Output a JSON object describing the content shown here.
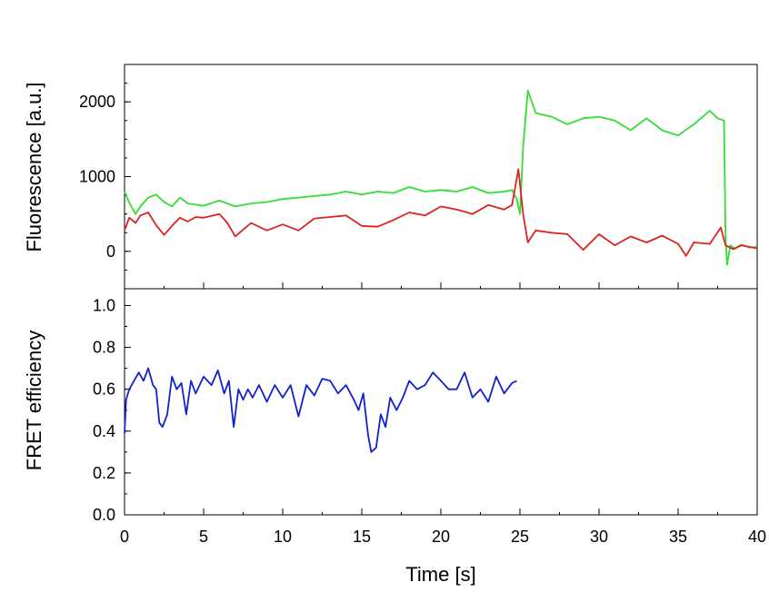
{
  "chart_data": [
    {
      "type": "line",
      "panel": "top",
      "title": "",
      "xlabel": "",
      "ylabel": "Fluorescence [a.u.]",
      "xlim": [
        0,
        40
      ],
      "ylim": [
        -500,
        2500
      ],
      "yticks": [
        0,
        1000,
        2000
      ],
      "ytick_labels": [
        "0",
        "1000",
        "2000"
      ],
      "grid": false,
      "series": [
        {
          "color": "#33dd33",
          "x": [
            0,
            0.3,
            0.7,
            1.0,
            1.5,
            2.0,
            2.5,
            3.0,
            3.5,
            4.0,
            5.0,
            6.0,
            7.0,
            8.0,
            9.0,
            10.0,
            11.0,
            12.0,
            13.0,
            14.0,
            15.0,
            16.0,
            17.0,
            18.0,
            19.0,
            20.0,
            21.0,
            22.0,
            23.0,
            24.0,
            24.5,
            24.8,
            25.0,
            25.2,
            25.5,
            26.0,
            27.0,
            28.0,
            29.0,
            30.0,
            31.0,
            32.0,
            33.0,
            34.0,
            35.0,
            36.0,
            37.0,
            37.5,
            37.9,
            38.0,
            38.1,
            38.3,
            38.6,
            39.0,
            39.5,
            40.0
          ],
          "y": [
            800,
            650,
            500,
            600,
            720,
            760,
            660,
            600,
            720,
            640,
            610,
            680,
            600,
            640,
            660,
            700,
            720,
            740,
            760,
            800,
            760,
            800,
            780,
            860,
            800,
            820,
            800,
            860,
            780,
            800,
            820,
            700,
            500,
            1400,
            2150,
            1850,
            1800,
            1700,
            1780,
            1800,
            1750,
            1620,
            1780,
            1620,
            1550,
            1700,
            1880,
            1780,
            1750,
            200,
            -180,
            80,
            40,
            90,
            50,
            60
          ]
        },
        {
          "color": "#dd2222",
          "x": [
            0,
            0.3,
            0.7,
            1.0,
            1.5,
            2.0,
            2.5,
            3.0,
            3.5,
            4.0,
            4.5,
            5.0,
            6.0,
            6.5,
            7.0,
            8.0,
            9.0,
            10.0,
            11.0,
            12.0,
            13.0,
            14.0,
            15.0,
            16.0,
            17.0,
            18.0,
            19.0,
            20.0,
            21.0,
            22.0,
            23.0,
            24.0,
            24.5,
            24.9,
            25.2,
            25.5,
            26.0,
            27.0,
            28.0,
            29.0,
            30.0,
            31.0,
            32.0,
            33.0,
            34.0,
            35.0,
            35.5,
            36.0,
            37.0,
            37.7,
            38.0,
            38.5,
            39.0,
            40.0
          ],
          "y": [
            280,
            450,
            380,
            480,
            520,
            350,
            220,
            340,
            450,
            400,
            460,
            450,
            500,
            380,
            200,
            380,
            280,
            360,
            280,
            440,
            460,
            480,
            340,
            330,
            420,
            520,
            480,
            600,
            560,
            500,
            620,
            560,
            620,
            1100,
            500,
            120,
            280,
            250,
            230,
            20,
            230,
            80,
            200,
            120,
            210,
            100,
            -60,
            120,
            100,
            320,
            80,
            30,
            80,
            40
          ]
        }
      ]
    },
    {
      "type": "line",
      "panel": "bottom",
      "title": "",
      "xlabel": "Time [s]",
      "ylabel": "FRET efficiency",
      "xlim": [
        0,
        40
      ],
      "ylim": [
        0,
        1.08
      ],
      "xticks": [
        0,
        5,
        10,
        15,
        20,
        25,
        30,
        35,
        40
      ],
      "xtick_labels": [
        "0",
        "5",
        "10",
        "15",
        "20",
        "25",
        "30",
        "35",
        "40"
      ],
      "yticks": [
        0.0,
        0.2,
        0.4,
        0.6,
        0.8,
        1.0
      ],
      "ytick_labels": [
        "0.0",
        "0.2",
        "0.4",
        "0.6",
        "0.8",
        "1.0"
      ],
      "grid": false,
      "series": [
        {
          "color": "#1122cc",
          "x": [
            0,
            0.1,
            0.3,
            0.6,
            0.9,
            1.2,
            1.5,
            1.8,
            2.0,
            2.2,
            2.4,
            2.7,
            3.0,
            3.3,
            3.6,
            3.9,
            4.2,
            4.5,
            5.0,
            5.5,
            5.9,
            6.3,
            6.6,
            6.9,
            7.2,
            7.5,
            7.8,
            8.1,
            8.5,
            9.0,
            9.5,
            10.0,
            10.5,
            11.0,
            11.5,
            12.0,
            12.5,
            13.0,
            13.5,
            14.0,
            14.5,
            14.8,
            15.1,
            15.4,
            15.6,
            15.9,
            16.2,
            16.5,
            16.8,
            17.2,
            17.6,
            18.0,
            18.5,
            19.0,
            19.5,
            20.0,
            20.5,
            21.0,
            21.5,
            22.0,
            22.5,
            23.0,
            23.5,
            24.0,
            24.5,
            24.8
          ],
          "y": [
            0.39,
            0.55,
            0.6,
            0.64,
            0.68,
            0.64,
            0.7,
            0.62,
            0.6,
            0.44,
            0.42,
            0.48,
            0.66,
            0.6,
            0.63,
            0.48,
            0.64,
            0.58,
            0.66,
            0.62,
            0.69,
            0.58,
            0.64,
            0.42,
            0.6,
            0.55,
            0.6,
            0.56,
            0.62,
            0.54,
            0.62,
            0.56,
            0.62,
            0.47,
            0.62,
            0.57,
            0.65,
            0.64,
            0.58,
            0.62,
            0.55,
            0.5,
            0.58,
            0.38,
            0.3,
            0.32,
            0.48,
            0.42,
            0.56,
            0.5,
            0.56,
            0.64,
            0.6,
            0.62,
            0.68,
            0.64,
            0.6,
            0.6,
            0.68,
            0.56,
            0.6,
            0.54,
            0.66,
            0.58,
            0.63,
            0.64
          ]
        }
      ]
    }
  ]
}
